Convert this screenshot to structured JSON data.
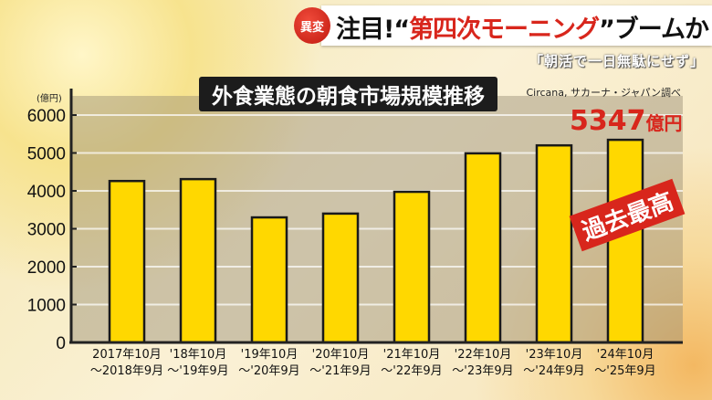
{
  "header": {
    "badge": "異変",
    "headline_pre": "注目!“",
    "headline_red": "第四次モーニング",
    "headline_post": "”ブームか",
    "subhead": "「朝活で一日無駄にせず」"
  },
  "source": "Circana, サカーナ・ジャパン調べ",
  "annotation": {
    "peak_value": "5347",
    "peak_unit": "億円",
    "record": "過去最高"
  },
  "colors": {
    "bar": "#ffd800",
    "accent": "#d8261c"
  },
  "chart_data": {
    "type": "bar",
    "title": "外食業態の朝食市場規模推移",
    "ylabel": "(億円)",
    "ylim": [
      0,
      6000
    ],
    "yticks": [
      0,
      1000,
      2000,
      3000,
      4000,
      5000,
      6000
    ],
    "grid": true,
    "categories": [
      [
        "2017年10月",
        "～2018年9月"
      ],
      [
        "'18年10月",
        "～'19年9月"
      ],
      [
        "'19年10月",
        "～'20年9月"
      ],
      [
        "'20年10月",
        "～'21年9月"
      ],
      [
        "'21年10月",
        "～'22年9月"
      ],
      [
        "'22年10月",
        "～'23年9月"
      ],
      [
        "'23年10月",
        "～'24年9月"
      ],
      [
        "'24年10月",
        "～'25年9月"
      ]
    ],
    "values": [
      4260,
      4310,
      3300,
      3400,
      3975,
      4990,
      5200,
      5347
    ]
  }
}
